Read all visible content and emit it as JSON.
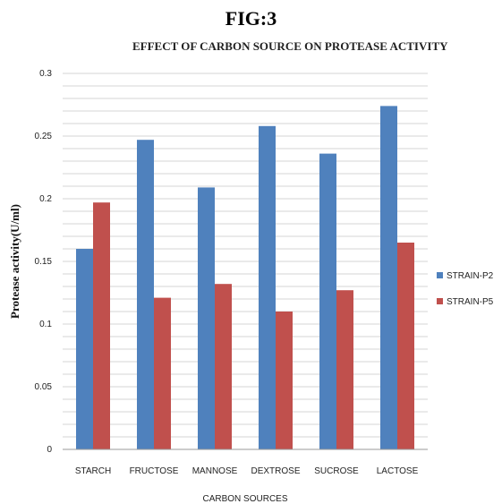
{
  "figure_label": "FIG:3",
  "chart_data": {
    "type": "bar",
    "title": "EFFECT OF CARBON SOURCE ON PROTEASE ACTIVITY",
    "xlabel": "CARBON SOURCES",
    "ylabel": "Protease activity(U/ml)",
    "categories": [
      "STARCH",
      "FRUCTOSE",
      "MANNOSE",
      "DEXTROSE",
      "SUCROSE",
      "LACTOSE"
    ],
    "series": [
      {
        "name": "STRAIN-P2",
        "color": "#4F81BD",
        "values": [
          0.16,
          0.247,
          0.209,
          0.258,
          0.236,
          0.274
        ]
      },
      {
        "name": "STRAIN-P5",
        "color": "#C0504D",
        "values": [
          0.197,
          0.121,
          0.132,
          0.11,
          0.127,
          0.165
        ]
      }
    ],
    "ylim": [
      0,
      0.3
    ],
    "yticks": [
      "0",
      "0.05",
      "0.1",
      "0.15",
      "0.2",
      "0.25",
      "0.3"
    ],
    "grid": true,
    "legend": "right"
  }
}
